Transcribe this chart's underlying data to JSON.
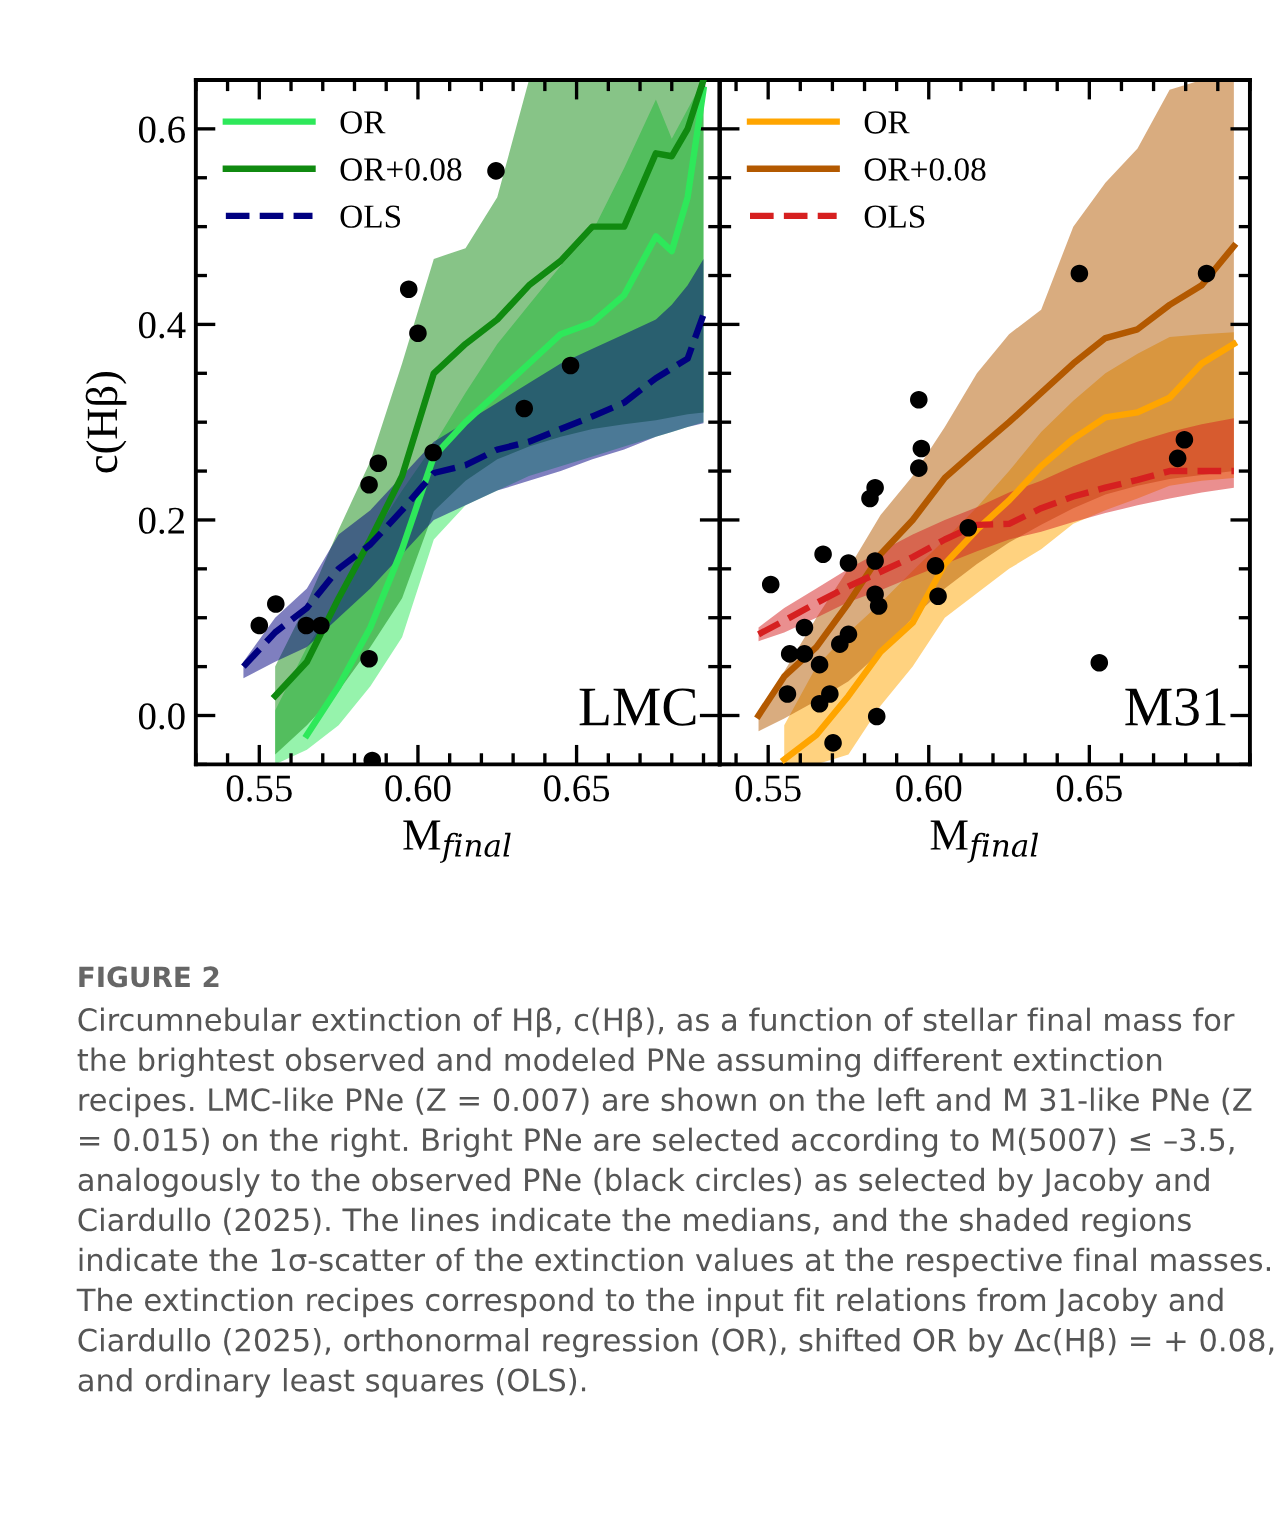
{
  "chart_data": [
    {
      "type": "line",
      "xlabel": "M$_{final}$",
      "ylabel": "c(Hβ)",
      "xlim": [
        0.53,
        0.695
      ],
      "ylim": [
        -0.05,
        0.65
      ],
      "xticks": [
        {
          "value": 0.55,
          "label": "0.55"
        },
        {
          "value": 0.6,
          "label": "0.60"
        },
        {
          "value": 0.65,
          "label": "0.65"
        }
      ],
      "yticks": [
        {
          "value": 0,
          "label": "0.0"
        },
        {
          "value": 0.2,
          "label": "0.2"
        },
        {
          "value": 0.4,
          "label": "0.4"
        },
        {
          "value": 0.6,
          "label": "0.6"
        }
      ],
      "legend": "top left",
      "annotations": [
        "LMC",
        "FIGURE 2",
        "Circumnebular extinction of Hβ, c(Hβ), as a function of stellar final mass for the brightest observed and modeled PNe assuming different extinction recipes. LMC-like PNe (Z = 0.007) are shown on the left and M 31-like PNe (Z = 0.015) on the right. Bright PNe are selected according to M(5007) ≤ –3.5, analogously to the observed PNe (black circles) as selected by Jacoby and Ciardullo (2025). The lines indicate the medians, and the shaded regions indicate the 1σ-scatter of the extinction values at the respective final masses. The extinction recipes correspond to the input fit relations from Jacoby and Ciardullo (2025), orthonormal regression (OR), shifted OR by Δc(Hβ) = + 0.08, and ordinary least squares (OLS)."
      ],
      "series": [
        {
          "name": "OR",
          "color": "#2ee85a",
          "line_style": "solid",
          "x": [
            0.555,
            0.565,
            0.575,
            0.585,
            0.595,
            0.605,
            0.615,
            0.625,
            0.635,
            0.645,
            0.655,
            0.665,
            0.675,
            0.68,
            0.685,
            0.69
          ],
          "values": [
            null,
            -0.02,
            0.03,
            0.09,
            0.17,
            0.265,
            0.3,
            0.33,
            0.36,
            0.39,
            0.402,
            0.43,
            0.49,
            0.475,
            0.53,
            0.64
          ],
          "lower": [
            -0.05,
            -0.035,
            -0.01,
            0.03,
            0.08,
            0.18,
            0.215,
            0.23,
            0.245,
            0.255,
            0.265,
            0.275,
            0.285,
            0.29,
            0.295,
            0.3
          ],
          "upper": [
            0.005,
            0.07,
            0.12,
            0.18,
            0.23,
            0.277,
            0.33,
            0.38,
            0.42,
            0.46,
            0.495,
            0.56,
            0.63,
            0.59,
            0.62,
            0.65
          ]
        },
        {
          "name": "OR+0.08",
          "color": "#108a10",
          "line_style": "solid",
          "x": [
            0.555,
            0.565,
            0.575,
            0.585,
            0.595,
            0.605,
            0.615,
            0.625,
            0.635,
            0.645,
            0.655,
            0.665,
            0.675,
            0.68,
            0.685,
            0.69
          ],
          "values": [
            0.02,
            0.055,
            0.12,
            0.18,
            0.245,
            0.35,
            0.38,
            0.405,
            0.44,
            0.465,
            0.5,
            0.5,
            0.575,
            0.572,
            0.6,
            0.65
          ],
          "lower": [
            -0.04,
            -0.01,
            0.025,
            0.07,
            0.12,
            0.209,
            0.24,
            0.262,
            0.275,
            0.285,
            0.293,
            0.298,
            0.302,
            0.305,
            0.308,
            0.31
          ],
          "upper": [
            0.05,
            0.115,
            0.19,
            0.26,
            0.36,
            0.467,
            0.478,
            0.53,
            0.65,
            0.65,
            0.65,
            0.65,
            0.65,
            0.65,
            0.65,
            0.65
          ]
        },
        {
          "name": "OLS",
          "color": "#000080",
          "line_style": "dashed",
          "x": [
            0.545,
            0.555,
            0.565,
            0.575,
            0.585,
            0.595,
            0.605,
            0.615,
            0.625,
            0.635,
            0.645,
            0.655,
            0.665,
            0.675,
            0.68,
            0.685,
            0.69
          ],
          "values": [
            0.05,
            0.085,
            0.11,
            0.15,
            0.175,
            0.21,
            0.248,
            0.256,
            0.272,
            0.28,
            0.293,
            0.306,
            0.32,
            0.345,
            0.355,
            0.365,
            0.41
          ],
          "lower": [
            0.038,
            0.055,
            0.07,
            0.1,
            0.13,
            0.165,
            0.2,
            0.215,
            0.23,
            0.24,
            0.25,
            0.262,
            0.272,
            0.285,
            0.29,
            0.295,
            0.299
          ],
          "upper": [
            0.055,
            0.1,
            0.13,
            0.185,
            0.21,
            0.245,
            0.28,
            0.3,
            0.32,
            0.34,
            0.36,
            0.375,
            0.39,
            0.405,
            0.42,
            0.44,
            0.467
          ]
        },
        {
          "type": "scatter",
          "color": "#000000",
          "marker": "circle",
          "x": [
            0.55,
            0.5552,
            0.5648,
            0.5694,
            0.5846,
            0.5875,
            0.5846,
            0.5856,
            0.5971,
            0.6,
            0.6048,
            0.6246,
            0.6335,
            0.6481
          ],
          "values": [
            0.092,
            0.114,
            0.092,
            0.092,
            0.236,
            0.258,
            0.058,
            -0.046,
            0.436,
            0.391,
            0.269,
            0.557,
            0.314,
            0.358
          ]
        }
      ]
    },
    {
      "type": "line",
      "xlabel": "M$_{final}$",
      "xlim": [
        0.535,
        0.7
      ],
      "ylim": [
        -0.05,
        0.65
      ],
      "xticks": [
        {
          "value": 0.55,
          "label": "0.55"
        },
        {
          "value": 0.6,
          "label": "0.60"
        },
        {
          "value": 0.65,
          "label": "0.65"
        }
      ],
      "yticks": [
        {
          "value": 0,
          "label": null
        },
        {
          "value": 0.2,
          "label": null
        },
        {
          "value": 0.4,
          "label": null
        },
        {
          "value": 0.6,
          "label": null
        }
      ],
      "tick_labels": "x",
      "legend": "top left",
      "annotations": [
        "M31"
      ],
      "series": [
        {
          "name": "OR",
          "color": "#ffa500",
          "line_style": "solid",
          "x": [
            0.555,
            0.565,
            0.575,
            0.585,
            0.595,
            0.605,
            0.615,
            0.625,
            0.635,
            0.645,
            0.655,
            0.665,
            0.675,
            0.685,
            0.695
          ],
          "values": [
            -0.045,
            -0.02,
            0.02,
            0.065,
            0.095,
            0.155,
            0.19,
            0.22,
            0.255,
            0.283,
            0.305,
            0.31,
            0.325,
            0.36,
            0.38
          ],
          "lower": [
            -0.05,
            -0.05,
            -0.04,
            0.01,
            0.05,
            0.1,
            0.125,
            0.15,
            0.17,
            0.196,
            0.21,
            0.222,
            0.235,
            0.24,
            0.243
          ],
          "upper": [
            -0.01,
            0.05,
            0.085,
            0.115,
            0.148,
            0.18,
            0.213,
            0.25,
            0.29,
            0.322,
            0.35,
            0.37,
            0.387,
            0.39,
            0.392
          ]
        },
        {
          "name": "OR+0.08",
          "color": "#b35900",
          "line_style": "solid",
          "x": [
            0.547,
            0.555,
            0.565,
            0.575,
            0.585,
            0.595,
            0.605,
            0.615,
            0.625,
            0.635,
            0.645,
            0.655,
            0.665,
            0.675,
            0.685,
            0.695
          ],
          "values": [
            0.0,
            0.04,
            0.07,
            0.115,
            0.165,
            0.2,
            0.243,
            0.272,
            0.3,
            0.33,
            0.36,
            0.386,
            0.395,
            0.42,
            0.44,
            0.48
          ],
          "lower": [
            -0.016,
            -0.003,
            0.015,
            0.035,
            0.065,
            0.1,
            0.13,
            0.155,
            0.177,
            0.195,
            0.212,
            0.226,
            0.235,
            0.242,
            0.246,
            0.25
          ],
          "upper": [
            0.001,
            0.045,
            0.1,
            0.15,
            0.205,
            0.245,
            0.295,
            0.35,
            0.39,
            0.415,
            0.5,
            0.545,
            0.58,
            0.64,
            0.65,
            0.65
          ]
        },
        {
          "name": "OLS",
          "color": "#d62020",
          "line_style": "dashed",
          "x": [
            0.547,
            0.555,
            0.565,
            0.575,
            0.585,
            0.595,
            0.605,
            0.615,
            0.625,
            0.635,
            0.645,
            0.655,
            0.665,
            0.675,
            0.685,
            0.695
          ],
          "values": [
            0.083,
            0.097,
            0.115,
            0.132,
            0.147,
            0.162,
            0.18,
            0.195,
            0.196,
            0.212,
            0.224,
            0.233,
            0.241,
            0.25,
            0.25,
            0.25
          ],
          "lower": [
            0.076,
            0.085,
            0.1,
            0.116,
            0.128,
            0.142,
            0.155,
            0.168,
            0.18,
            0.188,
            0.198,
            0.207,
            0.215,
            0.222,
            0.228,
            0.233
          ],
          "upper": [
            0.09,
            0.11,
            0.13,
            0.15,
            0.168,
            0.185,
            0.2,
            0.213,
            0.228,
            0.24,
            0.255,
            0.268,
            0.28,
            0.29,
            0.298,
            0.304
          ]
        },
        {
          "type": "scatter",
          "color": "#000000",
          "marker": "circle",
          "x": [
            0.5508,
            0.5671,
            0.575,
            0.5833,
            0.5969,
            0.5977,
            0.5969,
            0.5817,
            0.5833,
            0.6021,
            0.6029,
            0.6123,
            0.5567,
            0.5613,
            0.5613,
            0.566,
            0.556,
            0.566,
            0.5692,
            0.5723,
            0.575,
            0.5833,
            0.5844,
            0.5838,
            0.5702,
            0.6469,
            0.6531,
            0.6865,
            0.6775,
            0.6796
          ],
          "values": [
            0.134,
            0.165,
            0.156,
            0.158,
            0.323,
            0.273,
            0.253,
            0.222,
            0.233,
            0.153,
            0.122,
            0.192,
            0.063,
            0.063,
            0.09,
            0.052,
            0.022,
            0.012,
            0.022,
            0.073,
            0.083,
            0.124,
            0.112,
            -0.001,
            -0.028,
            0.452,
            0.054,
            0.452,
            0.263,
            0.282
          ]
        }
      ]
    }
  ]
}
